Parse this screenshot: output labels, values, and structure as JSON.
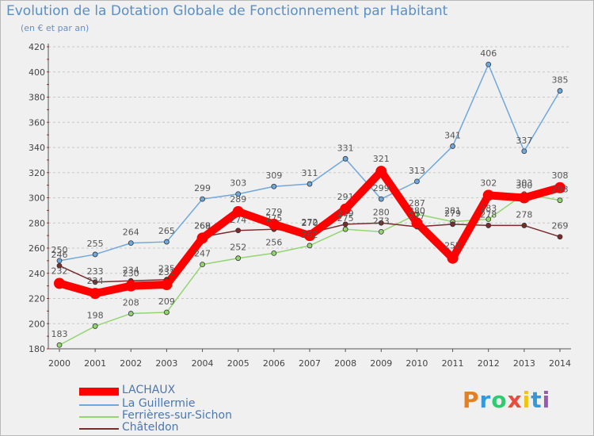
{
  "title": "Evolution de la Dotation Globale de Fonctionnement par Habitant",
  "subtitle": "(en € et par an)",
  "logo": {
    "text": "Proxiti",
    "colors": [
      "#e67e22",
      "#3498db",
      "#2ecc71",
      "#e74c3c",
      "#f1c40f",
      "#3498db",
      "#9b59b6"
    ]
  },
  "chart_data": {
    "type": "line",
    "title": "Evolution de la Dotation Globale de Fonctionnement par Habitant",
    "subtitle": "(en € et par an)",
    "xlabel": "",
    "ylabel": "",
    "x": [
      "2000",
      "2001",
      "2002",
      "2003",
      "2004",
      "2005",
      "2006",
      "2007",
      "2008",
      "2009",
      "2010",
      "2011",
      "2012",
      "2013",
      "2014"
    ],
    "ylim": [
      180,
      420
    ],
    "yticks": [
      180,
      200,
      220,
      240,
      260,
      280,
      300,
      320,
      340,
      360,
      380,
      400,
      420
    ],
    "grid": "horizontal dashed",
    "legend_position": "bottom-left",
    "series": [
      {
        "name": "LACHAUX",
        "color": "#ff0000",
        "width": 10,
        "marker": 7,
        "values": [
          232,
          224,
          230,
          231,
          268,
          289,
          279,
          270,
          291,
          321,
          280,
          252,
          302,
          300,
          308
        ],
        "labels": [
          "232",
          "224",
          "230",
          "231",
          "268",
          "289",
          "279",
          "270",
          "291",
          "321",
          "280",
          "252",
          "302",
          "300",
          "308"
        ]
      },
      {
        "name": "La Guillermie",
        "color": "#6fa8dc",
        "width": 1.5,
        "marker": 3,
        "values": [
          250,
          255,
          264,
          265,
          299,
          303,
          309,
          311,
          331,
          299,
          313,
          341,
          406,
          337,
          385
        ],
        "labels": [
          "250",
          "255",
          "264",
          "265",
          "299",
          "303",
          "309",
          "311",
          "331",
          "299",
          "313",
          "341",
          "406",
          "337",
          "385"
        ]
      },
      {
        "name": "Ferrières-sur-Sichon",
        "color": "#93d56f",
        "width": 1.5,
        "marker": 3,
        "values": [
          183,
          198,
          208,
          209,
          247,
          252,
          256,
          262,
          275,
          273,
          287,
          281,
          283,
          303,
          298
        ],
        "labels": [
          "183",
          "198",
          "208",
          "209",
          "247",
          "252",
          "256",
          "262",
          "275",
          "273",
          "287",
          "281",
          "283",
          "303",
          "298"
        ]
      },
      {
        "name": "Châteldon",
        "color": "#7a2b2b",
        "width": 1.5,
        "marker": 3,
        "values": [
          246,
          233,
          234,
          235,
          269,
          274,
          275,
          272,
          279,
          280,
          277,
          279,
          278,
          278,
          269
        ],
        "labels": [
          "246",
          "233",
          "234",
          "235",
          "269",
          "274",
          "275",
          "272",
          "279",
          "280",
          "277",
          "279",
          "278",
          "278",
          "269"
        ]
      }
    ]
  }
}
